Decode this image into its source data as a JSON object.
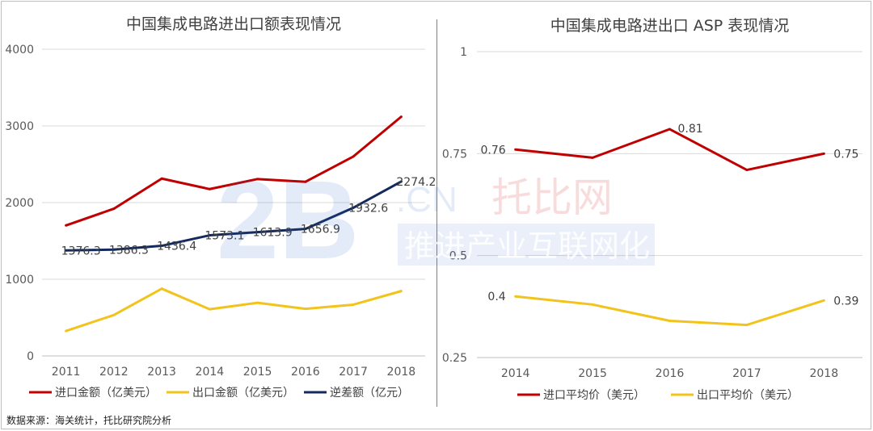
{
  "chart_data": [
    {
      "type": "line",
      "title": "中国集成电路进出口额表现情况",
      "categories": [
        "2011",
        "2012",
        "2013",
        "2014",
        "2015",
        "2016",
        "2017",
        "2018"
      ],
      "ylim": [
        0,
        4000
      ],
      "yticks": [
        "0",
        "1000",
        "2000",
        "3000",
        "4000"
      ],
      "grid": true,
      "legend_position": "bottom",
      "series": [
        {
          "name": "进口金额（亿美元）",
          "color": "#c00000",
          "values": [
            1702,
            1920,
            2313,
            2176,
            2307,
            2271,
            2601,
            3120
          ],
          "data_labels": [
            "",
            "",
            "",
            "",
            "",
            "",
            "",
            ""
          ]
        },
        {
          "name": "出口金额（亿美元）",
          "color": "#f2c41b",
          "values": [
            326,
            534,
            877,
            609,
            693,
            614,
            669,
            846
          ],
          "data_labels": [
            "",
            "",
            "",
            "",
            "",
            "",
            "",
            ""
          ]
        },
        {
          "name": "逆差额（亿元）",
          "color": "#142a5c",
          "values": [
            1376.3,
            1386.3,
            1436.4,
            1573.1,
            1613.9,
            1656.9,
            1932.6,
            2274.2
          ],
          "data_labels": [
            "1376.3",
            "1386.3",
            "1436.4",
            "1573.1",
            "1613.9",
            "1656.9",
            "1932.6",
            "2274.2"
          ]
        }
      ]
    },
    {
      "type": "line",
      "title": "中国集成电路进出口 ASP 表现情况",
      "categories": [
        "2014",
        "2015",
        "2016",
        "2017",
        "2018"
      ],
      "ylim": [
        0.25,
        1
      ],
      "yticks": [
        "0.25",
        "0.5",
        "0.75",
        "1"
      ],
      "grid": true,
      "legend_position": "bottom",
      "series": [
        {
          "name": "进口平均价（美元）",
          "color": "#c00000",
          "values": [
            0.76,
            0.74,
            0.81,
            0.71,
            0.75
          ],
          "data_labels": [
            "0.76",
            "",
            "0.81",
            "",
            "0.75"
          ]
        },
        {
          "name": "出口平均价（美元）",
          "color": "#f2c41b",
          "values": [
            0.4,
            0.38,
            0.34,
            0.33,
            0.39
          ],
          "data_labels": [
            "0.4",
            "",
            "",
            "",
            "0.39"
          ]
        }
      ]
    }
  ],
  "watermark": {
    "logo": "2B",
    "domain": ".CN",
    "brand": "托比网",
    "slogan": "推进产业互联网化"
  },
  "source_note": "数据来源：海关统计，托比研究院分析"
}
